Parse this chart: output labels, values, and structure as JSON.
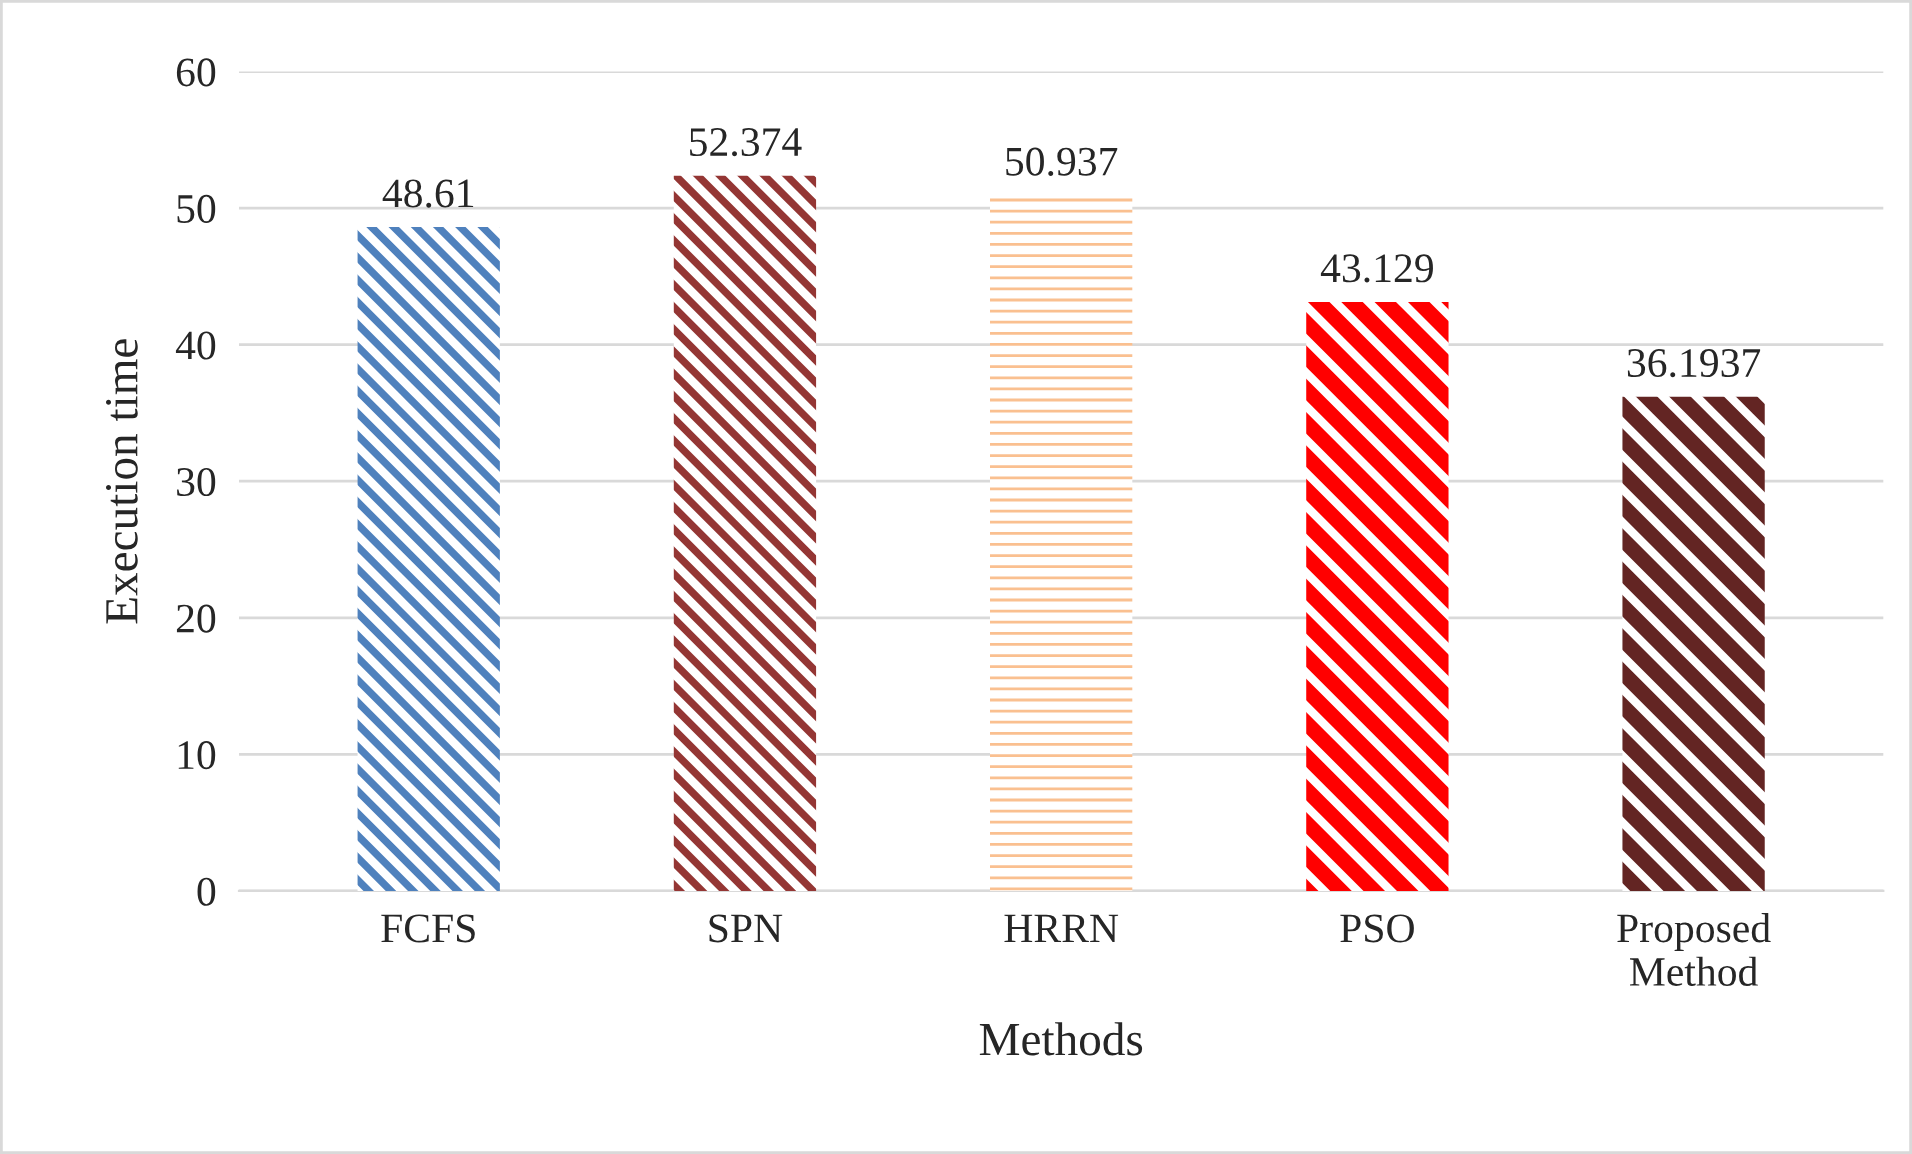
{
  "chart_data": {
    "type": "bar",
    "xlabel": "Methods",
    "ylabel": "Execution time",
    "categories": [
      "FCFS",
      "SPN",
      "HRRN",
      "PSO",
      "Proposed Method"
    ],
    "values": [
      48.61,
      52.374,
      50.937,
      43.129,
      36.1937
    ],
    "colors": [
      "#4f81bd",
      "#943634",
      "#fac090",
      "#ff0000",
      "#632523"
    ],
    "value_labels": [
      "48.61",
      "52.374",
      "50.937",
      "43.129",
      "36.1937"
    ],
    "ylim": [
      0,
      60
    ],
    "yticks": [
      0,
      10,
      20,
      30,
      40,
      50,
      60
    ],
    "grid": "y"
  }
}
